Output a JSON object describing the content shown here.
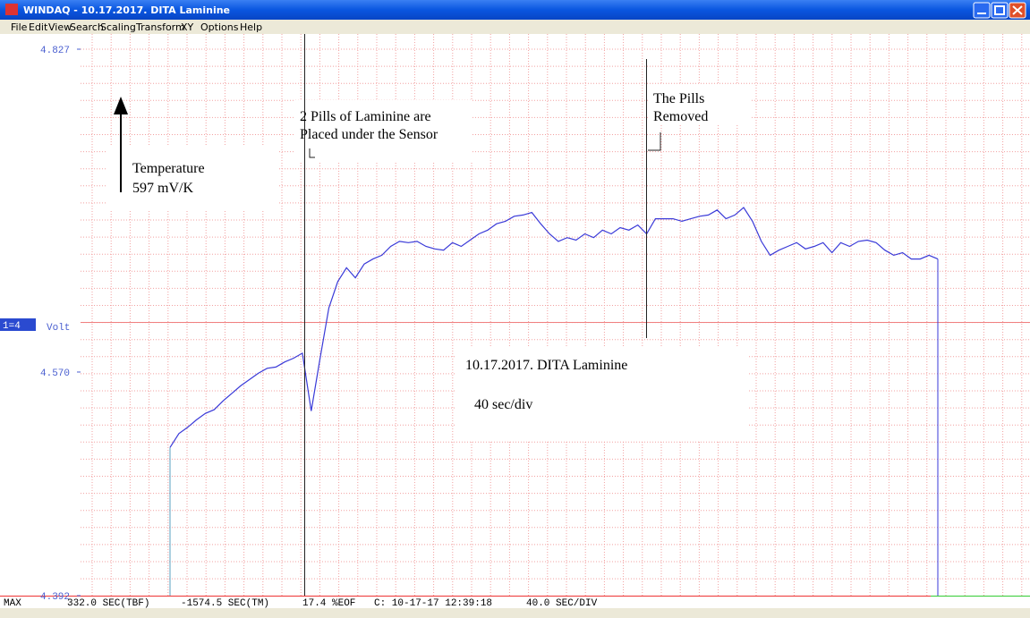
{
  "window": {
    "title": "WINDAQ - 10.17.2017. DITA Laminine"
  },
  "menu": [
    "File",
    "Edit",
    "View",
    "Search",
    "Scaling",
    "Transform",
    "XY",
    "Options",
    "Help"
  ],
  "chart_data": {
    "type": "line",
    "ylim": [
      4.392,
      4.827
    ],
    "yticks": [
      4.392,
      {
        "value": 4.57,
        "label": "4.570"
      },
      4.827
    ],
    "channel": "1=4",
    "unit": "Volt",
    "series": [
      {
        "color": "#3a3ad8",
        "values": [
          4.51,
          4.521,
          4.526,
          4.532,
          4.537,
          4.54,
          4.547,
          4.553,
          4.559,
          4.564,
          4.569,
          4.573,
          4.574,
          4.578,
          4.581,
          4.585,
          4.539,
          4.581,
          4.621,
          4.642,
          4.653,
          4.645,
          4.656,
          4.66,
          4.663,
          4.67,
          4.674,
          4.673,
          4.674,
          4.67,
          4.668,
          4.667,
          4.673,
          4.67,
          4.675,
          4.68,
          4.683,
          4.688,
          4.69,
          4.694,
          4.695,
          4.697,
          4.688,
          4.68,
          4.674,
          4.677,
          4.675,
          4.68,
          4.677,
          4.683,
          4.68,
          4.685,
          4.683,
          4.687,
          4.68,
          4.692,
          4.692,
          4.692,
          4.69,
          4.692,
          4.694,
          4.695,
          4.699,
          4.692,
          4.695,
          4.701,
          4.69,
          4.674,
          4.663,
          4.667,
          4.67,
          4.673,
          4.668,
          4.67,
          4.673,
          4.665,
          4.673,
          4.67,
          4.674,
          4.675,
          4.673,
          4.667,
          4.663,
          4.665,
          4.66,
          4.66,
          4.663,
          4.66
        ]
      }
    ],
    "annotations": {
      "temperature": [
        "Temperature",
        "597 mV/K"
      ],
      "pills_placed": [
        "2 Pills of Laminine are",
        "Placed under the Sensor"
      ],
      "pills_removed": [
        "The Pills",
        "Removed"
      ],
      "caption": [
        "10.17.2017. DITA Laminine",
        "40 sec/div"
      ]
    }
  },
  "status": [
    "MAX",
    "332.0 SEC(TBF)",
    "-1574.5 SEC(TM)",
    "17.4 %EOF",
    "C: 10-17-17 12:39:18",
    "40.0 SEC/DIV"
  ]
}
